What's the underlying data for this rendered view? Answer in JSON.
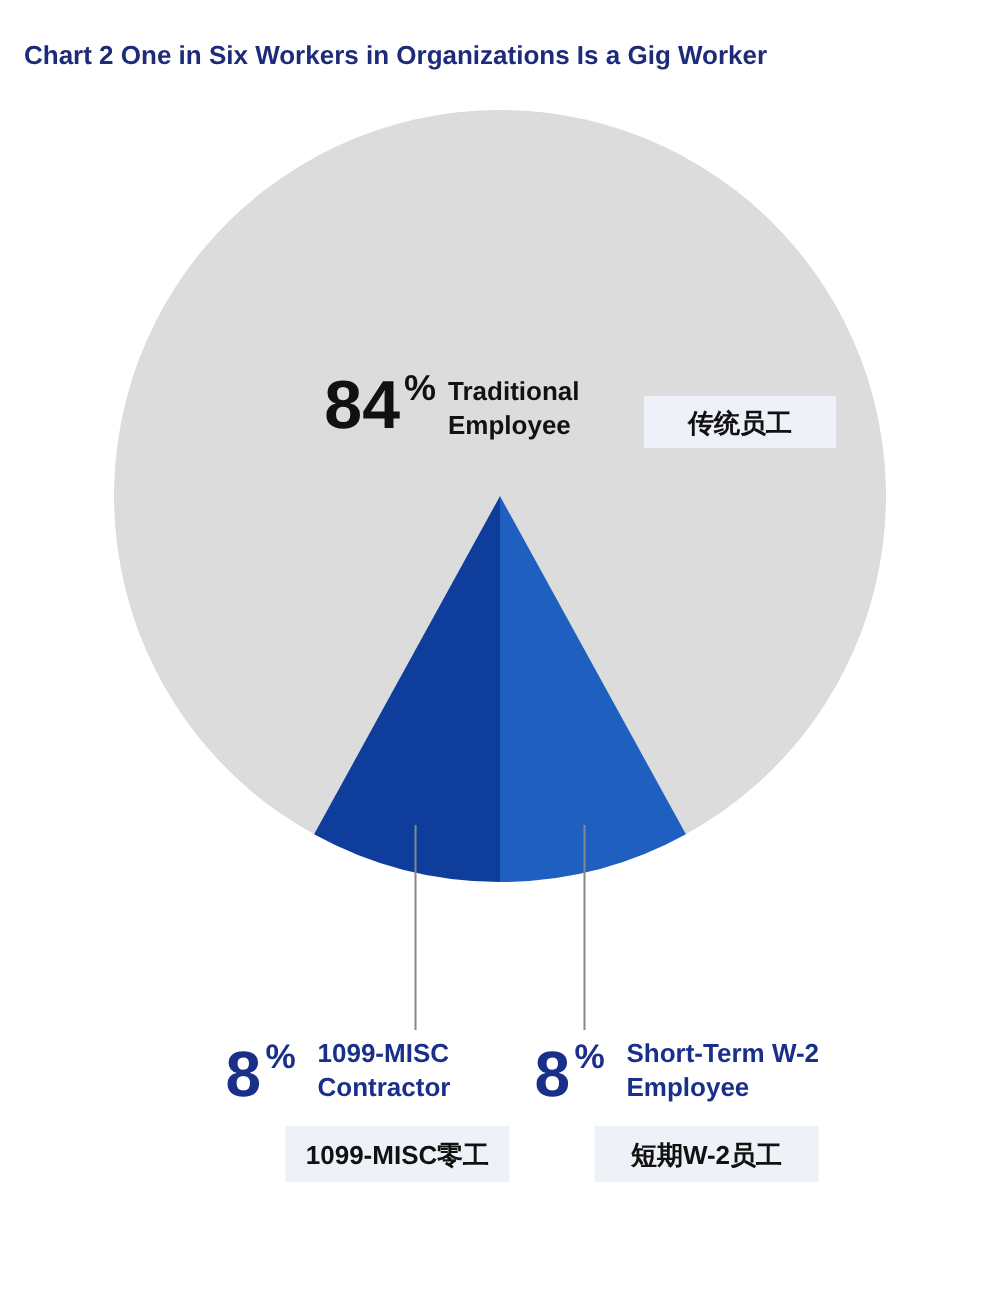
{
  "chart_data": {
    "type": "pie",
    "title": "Chart 2   One in Six Workers in Organizations Is a Gig Worker",
    "categories": [
      "Traditional Employee",
      "1099-MISC Contractor",
      "Short-Term W-2 Employee"
    ],
    "values": [
      84,
      8,
      8
    ],
    "value_labels": [
      "84%",
      "8%",
      "8%"
    ],
    "colors": [
      "#dcdcdc",
      "#0f3d9c",
      "#1f5fc0"
    ],
    "annotations": [
      "传统员工",
      "1099-MISC零工",
      "短期W-2员工"
    ]
  }
}
